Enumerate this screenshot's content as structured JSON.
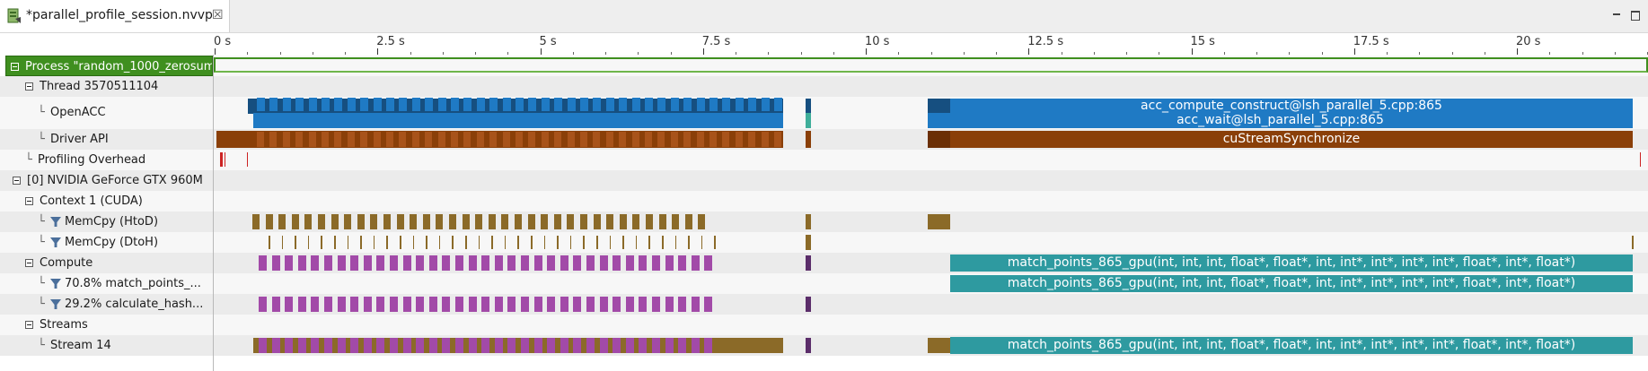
{
  "tab": {
    "title": "*parallel_profile_session.nvvp",
    "close_glyph": "☒",
    "icon": "nvvp-session-icon"
  },
  "window_controls": [
    "minimize-icon",
    "maximize-icon"
  ],
  "timeline": {
    "ticks": [
      "0 s",
      "2.5 s",
      "5 s",
      "7.5 s",
      "10 s",
      "12.5 s",
      "15 s",
      "17.5 s",
      "20 s"
    ],
    "tick_values_s": [
      0,
      2.5,
      5,
      7.5,
      10,
      12.5,
      15,
      17.5,
      20
    ]
  },
  "rows": [
    {
      "id": "process",
      "label": "Process \"random_1000_zerosum...",
      "level": 0,
      "expander": true,
      "kind": "process"
    },
    {
      "id": "thread",
      "label": "Thread 3570511104",
      "level": 1,
      "expander": true
    },
    {
      "id": "openacc",
      "label": "OpenACC",
      "level": 2,
      "tree": true,
      "tall": true
    },
    {
      "id": "driver",
      "label": "Driver API",
      "level": 2,
      "tree": true
    },
    {
      "id": "overhead",
      "label": "Profiling Overhead",
      "level": 1,
      "tree": true
    },
    {
      "id": "gpu",
      "label": "[0] NVIDIA GeForce GTX 960M",
      "level": 0,
      "expander": true
    },
    {
      "id": "context",
      "label": "Context 1 (CUDA)",
      "level": 1,
      "expander": true
    },
    {
      "id": "htod",
      "label": "MemCpy (HtoD)",
      "level": 2,
      "tree": true,
      "filter": true
    },
    {
      "id": "dtoh",
      "label": "MemCpy (DtoH)",
      "level": 2,
      "tree": true,
      "filter": true
    },
    {
      "id": "compute",
      "label": "Compute",
      "level": 1,
      "expander": true
    },
    {
      "id": "k1",
      "label": "70.8% match_points_...",
      "level": 2,
      "tree": true,
      "filter": true
    },
    {
      "id": "k2",
      "label": "29.2% calculate_hash...",
      "level": 2,
      "tree": true,
      "filter": true
    },
    {
      "id": "streams",
      "label": "Streams",
      "level": 1,
      "expander": true
    },
    {
      "id": "stream14",
      "label": "Stream 14",
      "level": 2,
      "tree": true
    }
  ],
  "long_segments": {
    "acc_compute": "acc_compute_construct@lsh_parallel_5.cpp:865",
    "acc_wait": "acc_wait@lsh_parallel_5.cpp:865",
    "stream_sync": "cuStreamSynchronize",
    "kernel_total": "match_points_865_gpu(int, int, int, float*, float*, int, int*, int*, int*, int*, float*, int*, float*)",
    "kernel_row": "match_points_865_gpu(int, int, int, float*, float*, int, int*, int*, int*, int*, float*, int*, float*)",
    "stream_kernel": "match_points_865_gpu(int, int, int, float*, float*, int, int*, int*, int*, int*, float*, int*, float*)"
  },
  "colors": {
    "openacc": "#1f7ac4",
    "openacc_dark": "#164f80",
    "driver": "#8a3f08",
    "memcpy": "#8b6a28",
    "kernel_purple": "#a24aa8",
    "kernel_teal": "#2e9aa0",
    "overhead": "#cc2222",
    "process": "#3f8f1f"
  }
}
